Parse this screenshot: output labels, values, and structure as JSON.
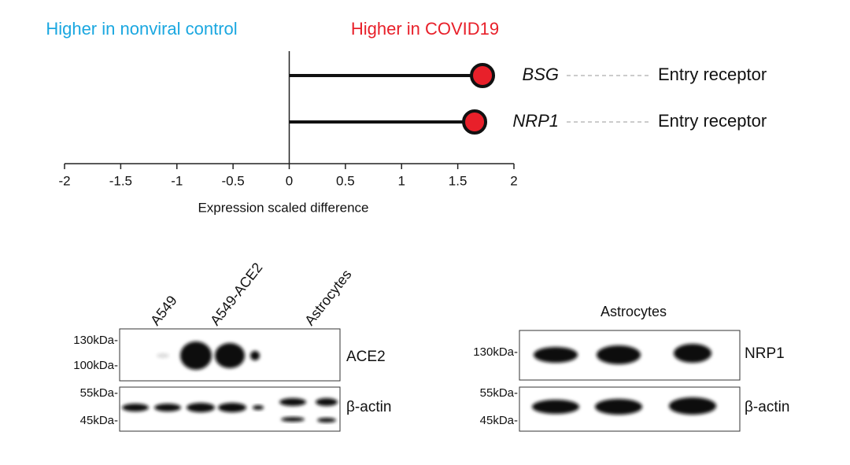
{
  "chart_data": {
    "type": "lollipop",
    "header_left": "Higher in nonviral control",
    "header_right": "Higher in COVID19",
    "categories": [
      "BSG",
      "NRP1"
    ],
    "values": [
      1.72,
      1.65
    ],
    "annotations": [
      "Entry receptor",
      "Entry receptor"
    ],
    "color": "#e8202a",
    "xlabel": "Expression scaled difference",
    "xlim": [
      -2,
      2
    ],
    "xticks": [
      -2,
      -1.5,
      -1,
      -0.5,
      0,
      0.5,
      1,
      1.5,
      2
    ]
  },
  "blot_left": {
    "lanes": [
      "A549",
      "A549-ACE2",
      "Astrocytes"
    ],
    "markers_top": [
      "130kDa-",
      "100kDa-"
    ],
    "markers_bottom": [
      "55kDa-",
      "45kDa-"
    ],
    "targets": [
      "ACE2",
      "β-actin"
    ]
  },
  "blot_right": {
    "title": "Astrocytes",
    "markers_top": [
      "130kDa-"
    ],
    "markers_bottom": [
      "55kDa-",
      "45kDa-"
    ],
    "targets": [
      "NRP1",
      "β-actin"
    ]
  }
}
